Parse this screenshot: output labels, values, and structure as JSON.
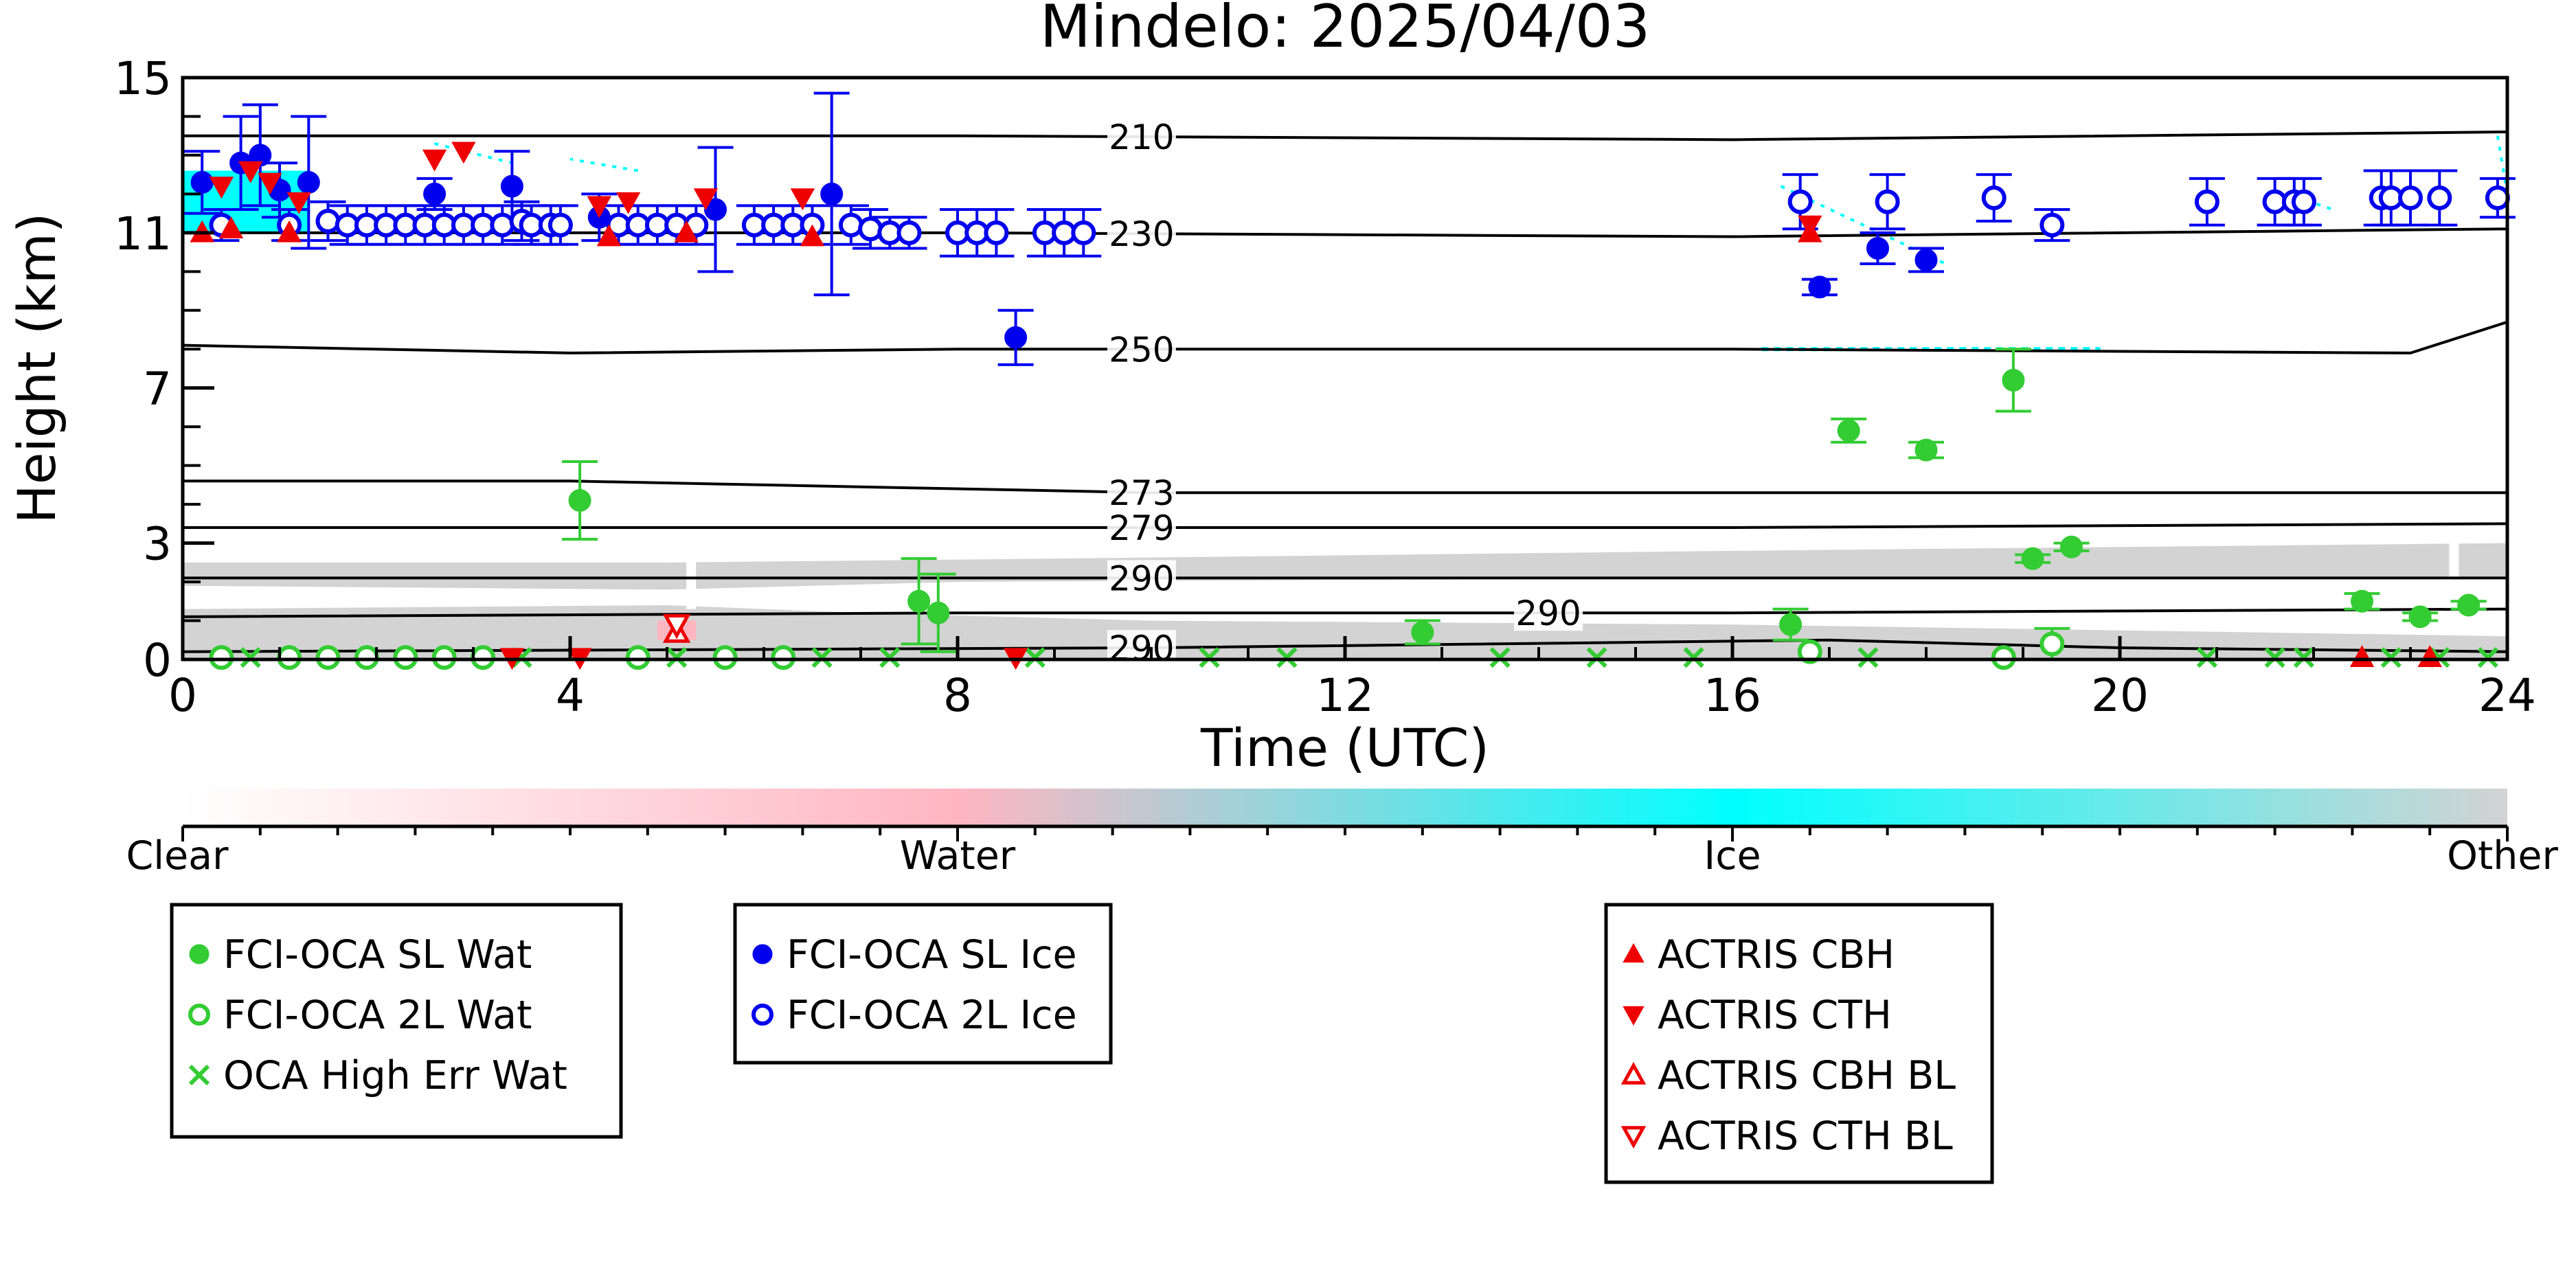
{
  "chart_data": {
    "type": "scatter",
    "title": "Mindelo: 2025/04/03",
    "xlabel": "Time (UTC)",
    "ylabel": "Height (km)",
    "xlim": [
      0,
      24
    ],
    "ylim": [
      0,
      15
    ],
    "x_ticks": [
      "0",
      "4",
      "8",
      "12",
      "16",
      "20",
      "24"
    ],
    "y_ticks": [
      "0",
      "3",
      "7",
      "11",
      "15"
    ],
    "colorbar": {
      "labels": [
        "Clear",
        "Water",
        "Ice",
        "Other"
      ],
      "colors": [
        "#ffffff",
        "#ffb6c1",
        "#00ffff",
        "#d3d3d3"
      ]
    },
    "isotherms": [
      {
        "label": "210",
        "label_x": 9.9,
        "y": [
          [
            0,
            13.5
          ],
          [
            8,
            13.5
          ],
          [
            16,
            13.4
          ],
          [
            24,
            13.6
          ]
        ]
      },
      {
        "label": "230",
        "label_x": 9.9,
        "y": [
          [
            0,
            11.0
          ],
          [
            8,
            11.0
          ],
          [
            16,
            10.9
          ],
          [
            24,
            11.1
          ]
        ]
      },
      {
        "label": "250",
        "label_x": 9.9,
        "y": [
          [
            0,
            8.1
          ],
          [
            4,
            7.9
          ],
          [
            8,
            8.0
          ],
          [
            16,
            8.0
          ],
          [
            23,
            7.9
          ],
          [
            24,
            8.7
          ]
        ]
      },
      {
        "label": "273",
        "label_x": 9.9,
        "y": [
          [
            0,
            4.6
          ],
          [
            4,
            4.6
          ],
          [
            10,
            4.3
          ],
          [
            16,
            4.3
          ],
          [
            24,
            4.3
          ]
        ]
      },
      {
        "label": "279",
        "label_x": 9.9,
        "y": [
          [
            0,
            3.4
          ],
          [
            8,
            3.4
          ],
          [
            16,
            3.4
          ],
          [
            24,
            3.5
          ]
        ]
      },
      {
        "label": "290",
        "label_x": 9.9,
        "y": [
          [
            0,
            2.1
          ],
          [
            8,
            2.1
          ],
          [
            16,
            2.1
          ],
          [
            24,
            2.1
          ]
        ]
      },
      {
        "label": "290",
        "label_x": 14.1,
        "y": [
          [
            0,
            1.1
          ],
          [
            8,
            1.2
          ],
          [
            16,
            1.2
          ],
          [
            24,
            1.3
          ]
        ]
      },
      {
        "label": "290",
        "label_x": 9.9,
        "y": [
          [
            0,
            0.2
          ],
          [
            10,
            0.3
          ],
          [
            17,
            0.5
          ],
          [
            20,
            0.3
          ],
          [
            24,
            0.2
          ]
        ]
      }
    ],
    "series": [
      {
        "name": "FCI-OCA SL Wat",
        "marker": "filled-circle",
        "color": "#33cc33",
        "points": [
          {
            "x": 4.1,
            "y": 4.1,
            "err": 1.0
          },
          {
            "x": 7.6,
            "y": 1.5,
            "err": 1.1
          },
          {
            "x": 7.8,
            "y": 1.2,
            "err": 1.0
          },
          {
            "x": 12.8,
            "y": 0.7,
            "err": 0.3
          },
          {
            "x": 16.6,
            "y": 0.9,
            "err": 0.4
          },
          {
            "x": 17.2,
            "y": 5.9,
            "err": 0.3
          },
          {
            "x": 18.0,
            "y": 5.4,
            "err": 0.2
          },
          {
            "x": 18.9,
            "y": 7.2,
            "err": 0.8
          },
          {
            "x": 19.1,
            "y": 2.6,
            "err": 0.1
          },
          {
            "x": 19.5,
            "y": 2.9,
            "err": 0.1
          },
          {
            "x": 22.5,
            "y": 1.5,
            "err": 0.2
          },
          {
            "x": 23.1,
            "y": 1.1,
            "err": 0.1
          },
          {
            "x": 23.6,
            "y": 1.4,
            "err": 0.1
          }
        ]
      },
      {
        "name": "FCI-OCA 2L Wat",
        "marker": "open-circle",
        "color": "#33cc33",
        "points": [
          {
            "x": 0.4,
            "y": 0.05,
            "err": 0
          },
          {
            "x": 1.1,
            "y": 0.05,
            "err": 0
          },
          {
            "x": 1.5,
            "y": 0.05,
            "err": 0
          },
          {
            "x": 1.9,
            "y": 0.05,
            "err": 0
          },
          {
            "x": 2.3,
            "y": 0.05,
            "err": 0
          },
          {
            "x": 2.7,
            "y": 0.05,
            "err": 0
          },
          {
            "x": 3.1,
            "y": 0.05,
            "err": 0
          },
          {
            "x": 4.7,
            "y": 0.05,
            "err": 0
          },
          {
            "x": 5.6,
            "y": 0.05,
            "err": 0
          },
          {
            "x": 6.2,
            "y": 0.05,
            "err": 0
          },
          {
            "x": 16.8,
            "y": 0.2,
            "err": 0
          },
          {
            "x": 18.8,
            "y": 0.05,
            "err": 0
          },
          {
            "x": 19.3,
            "y": 0.4,
            "err": 0.4
          }
        ]
      },
      {
        "name": "OCA High Err Wat",
        "marker": "x",
        "color": "#33cc33",
        "points": [
          {
            "x": 0.7,
            "y": 0.05,
            "err": 0
          },
          {
            "x": 3.5,
            "y": 0.05,
            "err": 0
          },
          {
            "x": 5.1,
            "y": 0.05,
            "err": 0
          },
          {
            "x": 6.6,
            "y": 0.05,
            "err": 0
          },
          {
            "x": 7.3,
            "y": 0.05,
            "err": 0
          },
          {
            "x": 8.8,
            "y": 0.05,
            "err": 0
          },
          {
            "x": 10.6,
            "y": 0.05,
            "err": 0
          },
          {
            "x": 11.4,
            "y": 0.05,
            "err": 0
          },
          {
            "x": 13.6,
            "y": 0.05,
            "err": 0
          },
          {
            "x": 14.6,
            "y": 0.05,
            "err": 0
          },
          {
            "x": 15.6,
            "y": 0.05,
            "err": 0
          },
          {
            "x": 17.4,
            "y": 0.05,
            "err": 0
          },
          {
            "x": 20.9,
            "y": 0.05,
            "err": 0
          },
          {
            "x": 21.6,
            "y": 0.05,
            "err": 0
          },
          {
            "x": 21.9,
            "y": 0.05,
            "err": 0
          },
          {
            "x": 22.8,
            "y": 0.05,
            "err": 0
          },
          {
            "x": 23.3,
            "y": 0.05,
            "err": 0
          },
          {
            "x": 23.8,
            "y": 0.05,
            "err": 0
          }
        ]
      },
      {
        "name": "FCI-OCA SL Ice",
        "marker": "filled-circle",
        "color": "#0000ee",
        "points": [
          {
            "x": 0.2,
            "y": 12.3,
            "err": 0.8
          },
          {
            "x": 0.6,
            "y": 12.8,
            "err": 1.2
          },
          {
            "x": 0.8,
            "y": 13.0,
            "err": 1.3
          },
          {
            "x": 1.0,
            "y": 12.1,
            "err": 0.7
          },
          {
            "x": 1.3,
            "y": 12.3,
            "err": 1.7
          },
          {
            "x": 2.6,
            "y": 12.0,
            "err": 0.4
          },
          {
            "x": 3.4,
            "y": 12.2,
            "err": 0.9
          },
          {
            "x": 4.3,
            "y": 11.4,
            "err": 0.6
          },
          {
            "x": 5.5,
            "y": 11.6,
            "err": 1.6
          },
          {
            "x": 6.7,
            "y": 12.0,
            "err": 2.6
          },
          {
            "x": 8.6,
            "y": 8.3,
            "err": 0.7
          },
          {
            "x": 16.9,
            "y": 9.6,
            "err": 0.2
          },
          {
            "x": 17.5,
            "y": 10.6,
            "err": 0.4
          },
          {
            "x": 18.0,
            "y": 10.3,
            "err": 0.3
          }
        ]
      },
      {
        "name": "FCI-OCA 2L Ice",
        "marker": "open-circle",
        "color": "#0000ee",
        "points": [
          {
            "x": 0.4,
            "y": 11.2,
            "err": 0.4
          },
          {
            "x": 1.1,
            "y": 11.2,
            "err": 0.4
          },
          {
            "x": 1.5,
            "y": 11.3,
            "err": 0.5
          },
          {
            "x": 1.7,
            "y": 11.2,
            "err": 0.5
          },
          {
            "x": 1.9,
            "y": 11.2,
            "err": 0.5
          },
          {
            "x": 2.1,
            "y": 11.2,
            "err": 0.5
          },
          {
            "x": 2.3,
            "y": 11.2,
            "err": 0.5
          },
          {
            "x": 2.5,
            "y": 11.2,
            "err": 0.5
          },
          {
            "x": 2.7,
            "y": 11.2,
            "err": 0.5
          },
          {
            "x": 2.9,
            "y": 11.2,
            "err": 0.5
          },
          {
            "x": 3.1,
            "y": 11.2,
            "err": 0.5
          },
          {
            "x": 3.3,
            "y": 11.2,
            "err": 0.5
          },
          {
            "x": 3.5,
            "y": 11.3,
            "err": 0.5
          },
          {
            "x": 3.6,
            "y": 11.2,
            "err": 0.5
          },
          {
            "x": 3.8,
            "y": 11.2,
            "err": 0.5
          },
          {
            "x": 3.9,
            "y": 11.2,
            "err": 0.5
          },
          {
            "x": 4.5,
            "y": 11.2,
            "err": 0.5
          },
          {
            "x": 4.7,
            "y": 11.2,
            "err": 0.5
          },
          {
            "x": 4.9,
            "y": 11.2,
            "err": 0.5
          },
          {
            "x": 5.1,
            "y": 11.2,
            "err": 0.5
          },
          {
            "x": 5.3,
            "y": 11.2,
            "err": 0.5
          },
          {
            "x": 5.9,
            "y": 11.2,
            "err": 0.5
          },
          {
            "x": 6.1,
            "y": 11.2,
            "err": 0.5
          },
          {
            "x": 6.3,
            "y": 11.2,
            "err": 0.5
          },
          {
            "x": 6.5,
            "y": 11.2,
            "err": 0.5
          },
          {
            "x": 6.9,
            "y": 11.2,
            "err": 0.5
          },
          {
            "x": 7.1,
            "y": 11.1,
            "err": 0.5
          },
          {
            "x": 7.3,
            "y": 11.0,
            "err": 0.4
          },
          {
            "x": 7.5,
            "y": 11.0,
            "err": 0.4
          },
          {
            "x": 8.0,
            "y": 11.0,
            "err": 0.6
          },
          {
            "x": 8.2,
            "y": 11.0,
            "err": 0.6
          },
          {
            "x": 8.4,
            "y": 11.0,
            "err": 0.6
          },
          {
            "x": 8.9,
            "y": 11.0,
            "err": 0.6
          },
          {
            "x": 9.1,
            "y": 11.0,
            "err": 0.6
          },
          {
            "x": 9.3,
            "y": 11.0,
            "err": 0.6
          },
          {
            "x": 16.7,
            "y": 11.8,
            "err": 0.7
          },
          {
            "x": 17.6,
            "y": 11.8,
            "err": 0.7
          },
          {
            "x": 18.7,
            "y": 11.9,
            "err": 0.6
          },
          {
            "x": 19.3,
            "y": 11.2,
            "err": 0.4
          },
          {
            "x": 20.9,
            "y": 11.8,
            "err": 0.6
          },
          {
            "x": 21.6,
            "y": 11.8,
            "err": 0.6
          },
          {
            "x": 21.8,
            "y": 11.8,
            "err": 0.6
          },
          {
            "x": 21.9,
            "y": 11.8,
            "err": 0.6
          },
          {
            "x": 22.7,
            "y": 11.9,
            "err": 0.7
          },
          {
            "x": 22.8,
            "y": 11.9,
            "err": 0.7
          },
          {
            "x": 23.0,
            "y": 11.9,
            "err": 0.7
          },
          {
            "x": 23.3,
            "y": 11.9,
            "err": 0.7
          },
          {
            "x": 23.9,
            "y": 11.9,
            "err": 0.5
          }
        ]
      },
      {
        "name": "ACTRIS CBH",
        "marker": "triangle-up",
        "color": "#ee0000",
        "points": [
          {
            "x": 0.2,
            "y": 11.0
          },
          {
            "x": 0.5,
            "y": 11.1
          },
          {
            "x": 1.1,
            "y": 11.0
          },
          {
            "x": 4.4,
            "y": 10.9
          },
          {
            "x": 5.2,
            "y": 11.0
          },
          {
            "x": 6.5,
            "y": 10.9
          },
          {
            "x": 16.8,
            "y": 11.0
          },
          {
            "x": 22.5,
            "y": 0.05
          },
          {
            "x": 23.2,
            "y": 0.05
          }
        ]
      },
      {
        "name": "ACTRIS CTH",
        "marker": "triangle-down",
        "color": "#ee0000",
        "points": [
          {
            "x": 0.4,
            "y": 12.2
          },
          {
            "x": 0.7,
            "y": 12.6
          },
          {
            "x": 0.9,
            "y": 12.3
          },
          {
            "x": 1.2,
            "y": 11.8
          },
          {
            "x": 2.6,
            "y": 12.9
          },
          {
            "x": 2.9,
            "y": 13.1
          },
          {
            "x": 4.3,
            "y": 11.7
          },
          {
            "x": 4.6,
            "y": 11.8
          },
          {
            "x": 5.4,
            "y": 11.9
          },
          {
            "x": 6.4,
            "y": 11.9
          },
          {
            "x": 16.8,
            "y": 11.2
          },
          {
            "x": 3.4,
            "y": 0.05
          },
          {
            "x": 4.1,
            "y": 0.05
          },
          {
            "x": 8.6,
            "y": 0.05
          }
        ]
      },
      {
        "name": "ACTRIS CBH BL",
        "marker": "open-triangle-up",
        "color": "#ee0000",
        "points": [
          {
            "x": 5.1,
            "y": 0.7
          }
        ]
      },
      {
        "name": "ACTRIS CTH BL",
        "marker": "open-triangle-down",
        "color": "#ee0000",
        "points": [
          {
            "x": 5.1,
            "y": 0.9
          }
        ]
      }
    ],
    "legend_boxes": [
      [
        "FCI-OCA SL Wat",
        "FCI-OCA 2L Wat",
        "OCA High Err Wat"
      ],
      [
        "FCI-OCA SL Ice",
        "FCI-OCA 2L Ice"
      ],
      [
        "ACTRIS CBH",
        "ACTRIS CTH",
        "ACTRIS CBH BL",
        "ACTRIS CTH BL"
      ]
    ]
  }
}
